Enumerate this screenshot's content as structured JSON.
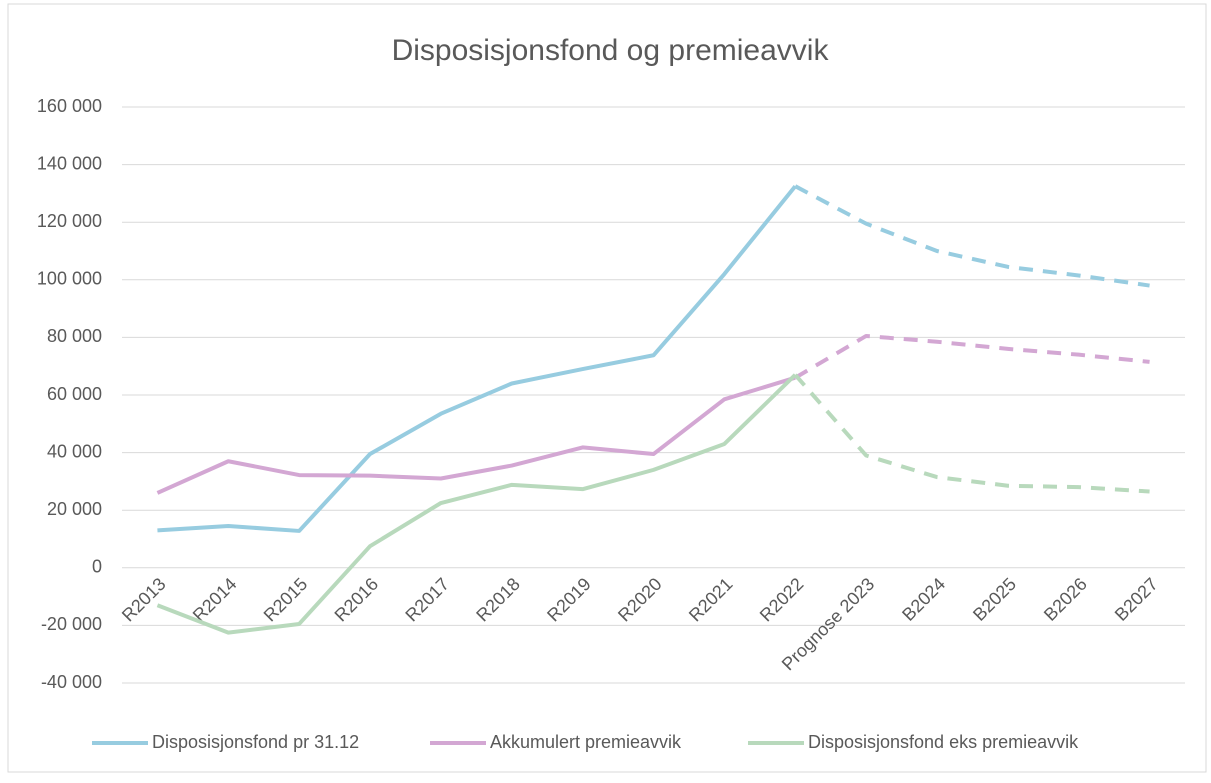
{
  "chart_data": {
    "type": "line",
    "title": "Disposisjonsfond og premieavvik",
    "categories": [
      "R2013",
      "R2014",
      "R2015",
      "R2016",
      "R2017",
      "R2018",
      "R2019",
      "R2020",
      "R2021",
      "R2022",
      "Prognose 2023",
      "B2024",
      "B2025",
      "B2026",
      "B2027"
    ],
    "dashed_after": "R2022",
    "series": [
      {
        "name": "Disposisjonsfond pr 31.12",
        "color": "#97cce0",
        "values": [
          13000,
          14500,
          12800,
          39500,
          53500,
          64000,
          69000,
          73800,
          102000,
          132500,
          119500,
          110000,
          104500,
          101500,
          98000
        ]
      },
      {
        "name": "Akkumulert premieavvik",
        "color": "#d3a7d3",
        "values": [
          26000,
          37000,
          32200,
          32000,
          31000,
          35500,
          41800,
          39500,
          58500,
          66000,
          80500,
          78500,
          76000,
          74000,
          71500
        ]
      },
      {
        "name": "Disposisjonsfond eks premieavvik",
        "color": "#b8d9bc",
        "values": [
          -13000,
          -22500,
          -19500,
          7500,
          22500,
          28800,
          27300,
          34000,
          43000,
          67000,
          39000,
          31500,
          28500,
          28000,
          26500
        ]
      }
    ],
    "ylim": [
      -40000,
      160000
    ],
    "yticks": [
      {
        "value": -40000,
        "label": "-40 000"
      },
      {
        "value": -20000,
        "label": "-20 000"
      },
      0,
      {
        "value": 20000,
        "label": "20 000"
      },
      {
        "value": 40000,
        "label": "40 000"
      },
      {
        "value": 60000,
        "label": "60 000"
      },
      {
        "value": 80000,
        "label": "80 000"
      },
      {
        "value": 100000,
        "label": "100 000"
      },
      {
        "value": 120000,
        "label": "120 000"
      },
      {
        "value": 140000,
        "label": "140 000"
      },
      {
        "value": 160000,
        "label": "160 000"
      }
    ],
    "grid": true,
    "legend": "bottom"
  }
}
